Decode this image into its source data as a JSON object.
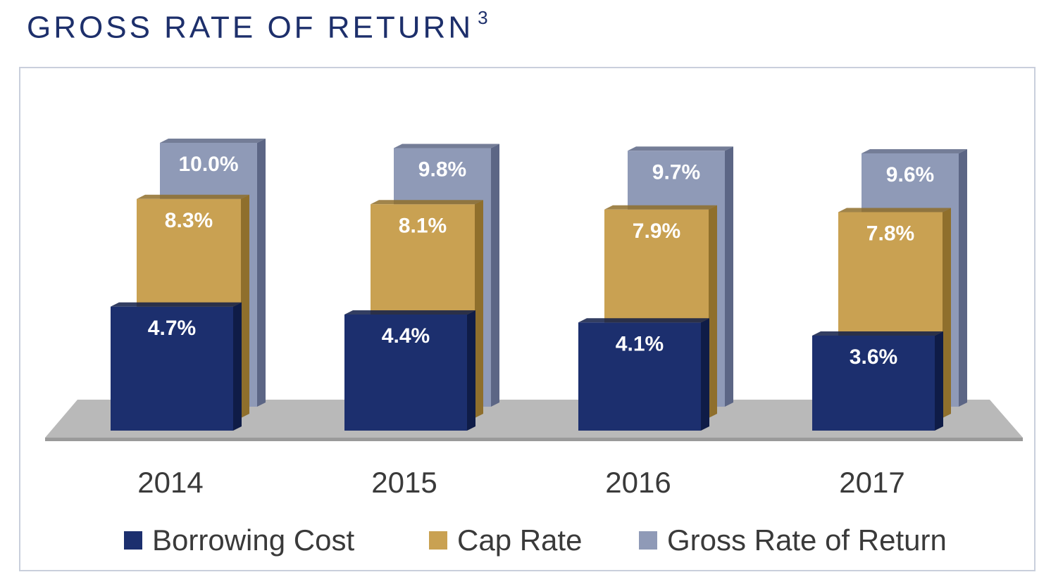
{
  "page": {
    "title": "GROSS RATE OF RETURN",
    "title_footnote": "3"
  },
  "colors": {
    "borrowing": "#1c2f6e",
    "borrowing_side": "#0f1c47",
    "cap": "#c9a152",
    "cap_side": "#8f6f2c",
    "gross": "#8f9ab7",
    "gross_side": "#5c6685",
    "floor": "#b9b9b9",
    "text_dark": "#3a3a3a"
  },
  "chart_data": {
    "type": "bar",
    "title": "GROSS RATE OF RETURN",
    "categories": [
      "2014",
      "2015",
      "2016",
      "2017"
    ],
    "series": [
      {
        "name": "Borrowing Cost",
        "values": [
          4.7,
          4.4,
          4.1,
          3.6
        ],
        "labels": [
          "4.7%",
          "4.4%",
          "4.1%",
          "3.6%"
        ],
        "color": "#1c2f6e"
      },
      {
        "name": "Cap Rate",
        "values": [
          8.3,
          8.1,
          7.9,
          7.8
        ],
        "labels": [
          "8.3%",
          "8.1%",
          "7.9%",
          "7.8%"
        ],
        "color": "#c9a152"
      },
      {
        "name": "Gross Rate of Return",
        "values": [
          10.0,
          9.8,
          9.7,
          9.6
        ],
        "labels": [
          "10.0%",
          "9.8%",
          "9.7%",
          "9.6%"
        ],
        "color": "#8f9ab7"
      }
    ],
    "ylim": [
      0,
      10
    ],
    "grid": false,
    "legend": "bottom",
    "style": "3d-clustered-bars"
  }
}
